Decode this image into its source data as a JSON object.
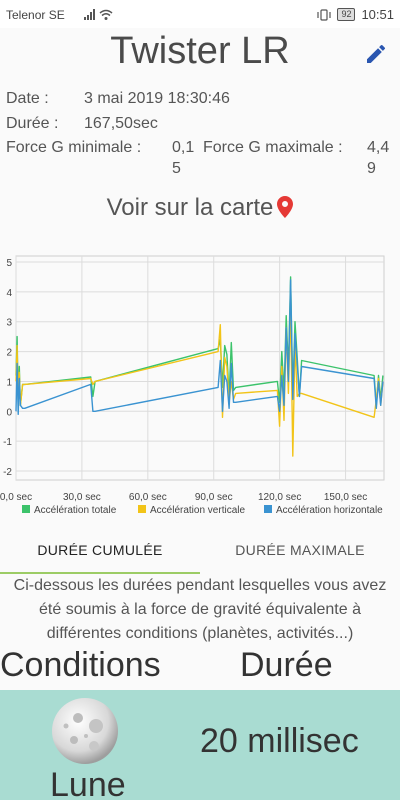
{
  "status_bar": {
    "carrier": "Telenor SE",
    "battery": "92",
    "time": "10:51"
  },
  "header": {
    "title": "Twister LR"
  },
  "details": {
    "date_label": "Date :",
    "date_value": "3 mai 2019 18:30:46",
    "duration_label": "Durée :",
    "duration_value": "167,50sec",
    "gmin_label": "Force G minimale :",
    "gmin_value": "0,1",
    "gmin_value_wrap": "5",
    "gmax_label": "Force G maximale :",
    "gmax_value": "4,4",
    "gmax_value_wrap": "9"
  },
  "map_link": {
    "label": "Voir sur la carte",
    "icon": "location-pin-icon",
    "color": "#e53935"
  },
  "chart_data": {
    "type": "line",
    "x_unit": "sec",
    "xlim": [
      0,
      167.5
    ],
    "ylim": [
      -2.3,
      5.2
    ],
    "x_ticks": [
      0,
      30,
      60,
      90,
      120,
      150
    ],
    "x_tick_labels": [
      "0,0 sec",
      "30,0 sec",
      "60,0 sec",
      "90,0 sec",
      "120,0 sec",
      "150,0 sec"
    ],
    "y_ticks": [
      -2,
      -1,
      0,
      1,
      2,
      3,
      4,
      5
    ],
    "y_tick_labels": [
      "-2",
      "-1",
      "0",
      "1",
      "2",
      "3",
      "4",
      "5"
    ],
    "grid": true,
    "legend_position": "bottom",
    "series": [
      {
        "name": "Accélération totale",
        "color": "#3cc36b",
        "x": [
          0,
          0.5,
          1,
          1.5,
          2,
          3,
          4,
          34,
          35,
          36,
          92,
          93,
          94,
          95,
          96,
          97,
          98,
          99,
          100,
          119,
          120,
          121,
          122,
          123,
          124,
          125,
          126,
          127,
          128,
          129,
          130,
          163,
          164,
          165,
          166,
          167
        ],
        "y": [
          1.2,
          2.5,
          0.3,
          1.5,
          0.2,
          0.9,
          0.9,
          1.15,
          0.5,
          1.0,
          2.1,
          2.4,
          0.8,
          2.2,
          1.9,
          0.5,
          2.3,
          0.7,
          0.8,
          1.0,
          0.3,
          2.0,
          0.6,
          3.2,
          1.4,
          4.5,
          0.6,
          3.0,
          1.8,
          0.5,
          1.7,
          1.2,
          0.2,
          1.2,
          0.4,
          1.2
        ]
      },
      {
        "name": "Accélération verticale",
        "color": "#f2c418",
        "x": [
          0,
          0.5,
          1,
          1.5,
          2,
          3,
          4,
          34,
          35,
          36,
          92,
          93,
          94,
          95,
          96,
          97,
          98,
          99,
          100,
          119,
          120,
          121,
          122,
          123,
          124,
          125,
          126,
          127,
          128,
          129,
          130,
          163,
          164,
          165,
          166,
          167
        ],
        "y": [
          1.0,
          2.2,
          0.3,
          1.3,
          0.2,
          0.9,
          0.9,
          1.1,
          0.9,
          1.0,
          2.0,
          2.9,
          -0.2,
          1.8,
          1.5,
          0.3,
          1.0,
          0.4,
          0.6,
          0.7,
          -0.5,
          1.5,
          -0.3,
          2.8,
          0.6,
          3.5,
          -1.5,
          2.3,
          0.5,
          0.6,
          0.6,
          -0.2,
          0.4,
          1.1,
          0.2,
          1.0
        ]
      },
      {
        "name": "Accélération horizontale",
        "color": "#3a93d1",
        "x": [
          0,
          0.5,
          1,
          1.5,
          2,
          3,
          4,
          34,
          35,
          36,
          92,
          93,
          94,
          95,
          96,
          97,
          98,
          99,
          100,
          119,
          120,
          121,
          122,
          123,
          124,
          125,
          126,
          127,
          128,
          129,
          130,
          163,
          164,
          165,
          166,
          167
        ],
        "y": [
          0.0,
          1.6,
          -0.1,
          1.1,
          0.2,
          0.1,
          0.1,
          0.9,
          0.0,
          0.0,
          0.8,
          1.7,
          0.0,
          1.2,
          1.0,
          0.1,
          1.6,
          0.3,
          0.3,
          0.5,
          0.0,
          1.2,
          0.2,
          2.8,
          1.0,
          4.4,
          0.4,
          2.6,
          1.6,
          0.5,
          1.5,
          1.1,
          0.1,
          1.0,
          0.2,
          1.0
        ]
      }
    ]
  },
  "tabs": [
    {
      "label": "DURÉE CUMULÉE",
      "active": true
    },
    {
      "label": "DURÉE MAXIMALE",
      "active": false
    }
  ],
  "description": "Ci-dessous les durées pendant lesquelles vous avez été soumis à la force de gravité équivalente à différentes conditions (planètes, activités...)",
  "table_header": {
    "conditions": "Conditions",
    "duration": "Durée"
  },
  "rows": [
    {
      "condition": "Lune",
      "duration": "20 millisec",
      "icon": "moon-icon",
      "color": "#a9dcd2"
    }
  ]
}
